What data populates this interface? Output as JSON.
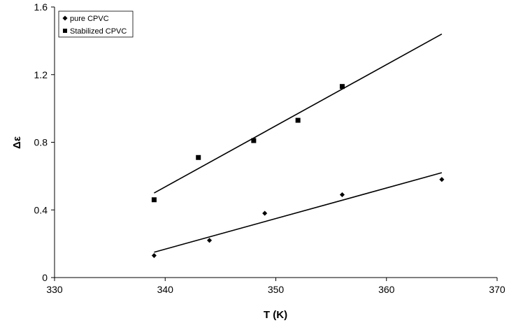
{
  "chart_data": {
    "type": "scatter",
    "xlabel": "T (K)",
    "ylabel": "Δε",
    "xlim": [
      330,
      370
    ],
    "ylim": [
      0,
      1.6
    ],
    "xticks": [
      "330",
      "340",
      "350",
      "360",
      "370"
    ],
    "yticks": [
      "0",
      "0.4",
      "0.8",
      "1.2",
      "1.6"
    ],
    "grid": false,
    "legend_position": "top-left",
    "series": [
      {
        "name": "pure CPVC",
        "marker": "diamond",
        "color": "#000000",
        "x": [
          339,
          344,
          349,
          356,
          365
        ],
        "y": [
          0.13,
          0.22,
          0.38,
          0.49,
          0.58
        ],
        "trend": {
          "x": [
            339,
            365
          ],
          "y": [
            0.15,
            0.62
          ]
        }
      },
      {
        "name": "Stabilized CPVC",
        "marker": "square",
        "color": "#000000",
        "x": [
          339,
          343,
          348,
          352,
          356
        ],
        "y": [
          0.46,
          0.71,
          0.81,
          0.93,
          1.13
        ],
        "trend": {
          "x": [
            339,
            365
          ],
          "y": [
            0.5,
            1.44
          ]
        }
      }
    ]
  }
}
